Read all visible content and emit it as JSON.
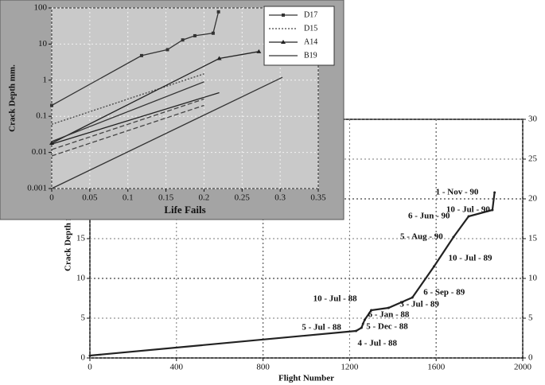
{
  "chart_data": [
    {
      "type": "line",
      "xlabel": "Flight Number",
      "ylabel": "Crack Depth mm",
      "xlim": [
        0,
        2000
      ],
      "xticks": [
        0,
        400,
        800,
        1200,
        1600,
        2000
      ],
      "ylim": [
        0,
        30
      ],
      "yticks": [
        0,
        5,
        10,
        15,
        20,
        25,
        30
      ],
      "grid": true,
      "right_axis_labels": true,
      "series": [
        {
          "color": "#222222",
          "x": [
            0,
            1230,
            1255,
            1262,
            1270,
            1300,
            1380,
            1490,
            1590,
            1680,
            1750,
            1860,
            1870
          ],
          "values": [
            0.3,
            3.4,
            3.8,
            4.3,
            4.8,
            6.0,
            6.3,
            7.6,
            11.5,
            15.2,
            17.8,
            18.6,
            20.8
          ],
          "point_labels": [
            null,
            "4 - Jul - 88",
            "5 - Jul - 88",
            "5 - Dec - 88",
            "6 - Jan - 88",
            "10 - Jul - 88",
            "3 - Jul - 89",
            "6 - Sep - 89",
            "10 - Jul - 89",
            "5 - Aug - 90",
            "6 - Jun - 90",
            "10 - Jul - 90",
            "1 - Nov - 90"
          ]
        }
      ]
    },
    {
      "type": "line",
      "xlabel": "Life Fails",
      "ylabel": "Crack Depth mm.",
      "log_y": true,
      "xlim": [
        0,
        0.35
      ],
      "xticks": [
        0,
        0.05,
        0.1,
        0.15,
        0.2,
        0.25,
        0.3,
        0.35
      ],
      "ylim": [
        0.001,
        100
      ],
      "yticks": [
        0.001,
        0.01,
        0.1,
        1,
        10,
        100
      ],
      "grid": true,
      "legend": "upper right",
      "series": [
        {
          "name": "D17",
          "color": "#333333",
          "style": "solid",
          "marker": "square",
          "x": [
            0,
            0.118,
            0.152,
            0.172,
            0.188,
            0.212,
            0.219
          ],
          "values": [
            0.2,
            4.8,
            7,
            13,
            17,
            20,
            78
          ]
        },
        {
          "name": "D15",
          "color": "#444444",
          "style": "dotted",
          "marker": "none",
          "x": [
            0,
            0.2
          ],
          "values": [
            0.06,
            1.5
          ]
        },
        {
          "name": "A14",
          "color": "#222222",
          "style": "solid",
          "marker": "triangle",
          "x": [
            0,
            0.22,
            0.272
          ],
          "values": [
            0.018,
            4,
            6.2
          ]
        },
        {
          "name": "B19",
          "color": "#333333",
          "style": "solid",
          "marker": "none",
          "x": [
            0,
            0.303
          ],
          "values": [
            0.001,
            1.2
          ]
        },
        {
          "color": "#222222",
          "style": "solid",
          "marker": "none",
          "x": [
            0,
            0.22
          ],
          "values": [
            0.017,
            0.45
          ]
        },
        {
          "color": "#444444",
          "style": "dashed",
          "marker": "none",
          "x": [
            0,
            0.2
          ],
          "values": [
            0.012,
            0.3
          ]
        },
        {
          "color": "#444444",
          "style": "dashed",
          "marker": "none",
          "x": [
            0,
            0.2
          ],
          "values": [
            0.008,
            0.2
          ]
        },
        {
          "color": "#333333",
          "style": "solid",
          "marker": "none",
          "x": [
            0,
            0.2
          ],
          "values": [
            0.02,
            0.9
          ]
        }
      ]
    }
  ]
}
